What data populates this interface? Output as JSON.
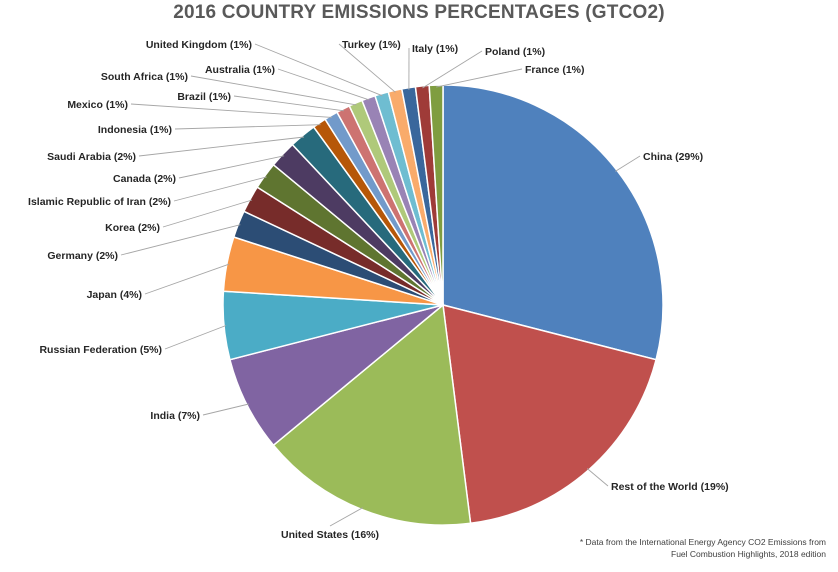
{
  "chart_data": {
    "type": "pie",
    "title": "2016 COUNTRY EMISSIONS PERCENTAGES (GTCO2)",
    "start": "12 o'clock",
    "direction": "clockwise",
    "slices": [
      {
        "label": "China (29%)",
        "value": 29,
        "color": "#4F81BD"
      },
      {
        "label": "Rest of the World (19%)",
        "value": 19,
        "color": "#C0504D"
      },
      {
        "label": "United States (16%)",
        "value": 16,
        "color": "#9BBB59"
      },
      {
        "label": "India (7%)",
        "value": 7,
        "color": "#8064A2"
      },
      {
        "label": "Russian Federation (5%)",
        "value": 5,
        "color": "#4BACC6"
      },
      {
        "label": "Japan (4%)",
        "value": 4,
        "color": "#F79646"
      },
      {
        "label": "Germany (2%)",
        "value": 2,
        "color": "#2C4D75"
      },
      {
        "label": "Korea (2%)",
        "value": 2,
        "color": "#772C2A"
      },
      {
        "label": "Islamic Republic of Iran (2%)",
        "value": 2,
        "color": "#5F7530"
      },
      {
        "label": "Canada (2%)",
        "value": 2,
        "color": "#4D3B62"
      },
      {
        "label": "Saudi Arabia (2%)",
        "value": 2,
        "color": "#276A7C"
      },
      {
        "label": "Indonesia (1%)",
        "value": 1,
        "color": "#B65708"
      },
      {
        "label": "Mexico (1%)",
        "value": 1,
        "color": "#729ACA"
      },
      {
        "label": "Brazil (1%)",
        "value": 1,
        "color": "#CD7371"
      },
      {
        "label": "South Africa (1%)",
        "value": 1,
        "color": "#AFC97A"
      },
      {
        "label": "Australia (1%)",
        "value": 1,
        "color": "#9983B5"
      },
      {
        "label": "United Kingdom (1%)",
        "value": 1,
        "color": "#6FBDD1"
      },
      {
        "label": "Turkey (1%)",
        "value": 1,
        "color": "#F9AB6B"
      },
      {
        "label": "Italy (1%)",
        "value": 1,
        "color": "#3A679C"
      },
      {
        "label": "Poland (1%)",
        "value": 1,
        "color": "#9F3B38"
      },
      {
        "label": "France (1%)",
        "value": 1,
        "color": "#7F9D40"
      }
    ]
  },
  "footnote": {
    "line1": "* Data from the International Energy Agency CO2 Emissions from",
    "line2": "Fuel Combustion Highlights, 2018 edition"
  }
}
